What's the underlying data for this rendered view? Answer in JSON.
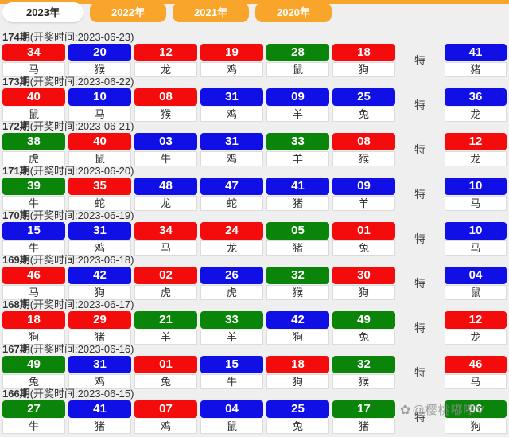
{
  "page": {
    "background": "#efefef",
    "accent_orange": "#f9a42b"
  },
  "tabs": [
    {
      "label": "2023年",
      "active": true
    },
    {
      "label": "2022年",
      "active": false
    },
    {
      "label": "2021年",
      "active": false
    },
    {
      "label": "2020年",
      "active": false
    }
  ],
  "special_label": "特",
  "watermark": {
    "icon_glyph": "✿",
    "text": "@樱桃嘟嘟V"
  },
  "ball_colors": {
    "red": "#f40b0b",
    "blue": "#0f0fe6",
    "green": "#0a850a"
  },
  "rows": [
    {
      "period": "174期",
      "draw_time": "(开奖时间:2023-06-23)",
      "balls": [
        {
          "num": "34",
          "color": "red",
          "zodiac": "马"
        },
        {
          "num": "20",
          "color": "blue",
          "zodiac": "猴"
        },
        {
          "num": "12",
          "color": "red",
          "zodiac": "龙"
        },
        {
          "num": "19",
          "color": "red",
          "zodiac": "鸡"
        },
        {
          "num": "28",
          "color": "green",
          "zodiac": "鼠"
        },
        {
          "num": "18",
          "color": "red",
          "zodiac": "狗"
        }
      ],
      "special": {
        "num": "41",
        "color": "blue",
        "zodiac": "猪"
      }
    },
    {
      "period": "173期",
      "draw_time": "(开奖时间:2023-06-22)",
      "balls": [
        {
          "num": "40",
          "color": "red",
          "zodiac": "鼠"
        },
        {
          "num": "10",
          "color": "blue",
          "zodiac": "马"
        },
        {
          "num": "08",
          "color": "red",
          "zodiac": "猴"
        },
        {
          "num": "31",
          "color": "blue",
          "zodiac": "鸡"
        },
        {
          "num": "09",
          "color": "blue",
          "zodiac": "羊"
        },
        {
          "num": "25",
          "color": "blue",
          "zodiac": "兔"
        }
      ],
      "special": {
        "num": "36",
        "color": "blue",
        "zodiac": "龙"
      }
    },
    {
      "period": "172期",
      "draw_time": "(开奖时间:2023-06-21)",
      "balls": [
        {
          "num": "38",
          "color": "green",
          "zodiac": "虎"
        },
        {
          "num": "40",
          "color": "red",
          "zodiac": "鼠"
        },
        {
          "num": "03",
          "color": "blue",
          "zodiac": "牛"
        },
        {
          "num": "31",
          "color": "blue",
          "zodiac": "鸡"
        },
        {
          "num": "33",
          "color": "green",
          "zodiac": "羊"
        },
        {
          "num": "08",
          "color": "red",
          "zodiac": "猴"
        }
      ],
      "special": {
        "num": "12",
        "color": "red",
        "zodiac": "龙"
      }
    },
    {
      "period": "171期",
      "draw_time": "(开奖时间:2023-06-20)",
      "balls": [
        {
          "num": "39",
          "color": "green",
          "zodiac": "牛"
        },
        {
          "num": "35",
          "color": "red",
          "zodiac": "蛇"
        },
        {
          "num": "48",
          "color": "blue",
          "zodiac": "龙"
        },
        {
          "num": "47",
          "color": "blue",
          "zodiac": "蛇"
        },
        {
          "num": "41",
          "color": "blue",
          "zodiac": "猪"
        },
        {
          "num": "09",
          "color": "blue",
          "zodiac": "羊"
        }
      ],
      "special": {
        "num": "10",
        "color": "blue",
        "zodiac": "马"
      }
    },
    {
      "period": "170期",
      "draw_time": "(开奖时间:2023-06-19)",
      "balls": [
        {
          "num": "15",
          "color": "blue",
          "zodiac": "牛"
        },
        {
          "num": "31",
          "color": "blue",
          "zodiac": "鸡"
        },
        {
          "num": "34",
          "color": "red",
          "zodiac": "马"
        },
        {
          "num": "24",
          "color": "red",
          "zodiac": "龙"
        },
        {
          "num": "05",
          "color": "green",
          "zodiac": "猪"
        },
        {
          "num": "01",
          "color": "red",
          "zodiac": "兔"
        }
      ],
      "special": {
        "num": "10",
        "color": "blue",
        "zodiac": "马"
      }
    },
    {
      "period": "169期",
      "draw_time": "(开奖时间:2023-06-18)",
      "balls": [
        {
          "num": "46",
          "color": "red",
          "zodiac": "马"
        },
        {
          "num": "42",
          "color": "blue",
          "zodiac": "狗"
        },
        {
          "num": "02",
          "color": "red",
          "zodiac": "虎"
        },
        {
          "num": "26",
          "color": "blue",
          "zodiac": "虎"
        },
        {
          "num": "32",
          "color": "green",
          "zodiac": "猴"
        },
        {
          "num": "30",
          "color": "red",
          "zodiac": "狗"
        }
      ],
      "special": {
        "num": "04",
        "color": "blue",
        "zodiac": "鼠"
      }
    },
    {
      "period": "168期",
      "draw_time": "(开奖时间:2023-06-17)",
      "balls": [
        {
          "num": "18",
          "color": "red",
          "zodiac": "狗"
        },
        {
          "num": "29",
          "color": "red",
          "zodiac": "猪"
        },
        {
          "num": "21",
          "color": "green",
          "zodiac": "羊"
        },
        {
          "num": "33",
          "color": "green",
          "zodiac": "羊"
        },
        {
          "num": "42",
          "color": "blue",
          "zodiac": "狗"
        },
        {
          "num": "49",
          "color": "green",
          "zodiac": "兔"
        }
      ],
      "special": {
        "num": "12",
        "color": "red",
        "zodiac": "龙"
      }
    },
    {
      "period": "167期",
      "draw_time": "(开奖时间:2023-06-16)",
      "balls": [
        {
          "num": "49",
          "color": "green",
          "zodiac": "兔"
        },
        {
          "num": "31",
          "color": "blue",
          "zodiac": "鸡"
        },
        {
          "num": "01",
          "color": "red",
          "zodiac": "兔"
        },
        {
          "num": "15",
          "color": "blue",
          "zodiac": "牛"
        },
        {
          "num": "18",
          "color": "red",
          "zodiac": "狗"
        },
        {
          "num": "32",
          "color": "green",
          "zodiac": "猴"
        }
      ],
      "special": {
        "num": "46",
        "color": "red",
        "zodiac": "马"
      }
    },
    {
      "period": "166期",
      "draw_time": "(开奖时间:2023-06-15)",
      "balls": [
        {
          "num": "27",
          "color": "green",
          "zodiac": "牛"
        },
        {
          "num": "41",
          "color": "blue",
          "zodiac": "猪"
        },
        {
          "num": "07",
          "color": "red",
          "zodiac": "鸡"
        },
        {
          "num": "04",
          "color": "blue",
          "zodiac": "鼠"
        },
        {
          "num": "25",
          "color": "blue",
          "zodiac": "兔"
        },
        {
          "num": "17",
          "color": "green",
          "zodiac": "猪"
        }
      ],
      "special": {
        "num": "06",
        "color": "green",
        "zodiac": "狗"
      }
    }
  ]
}
